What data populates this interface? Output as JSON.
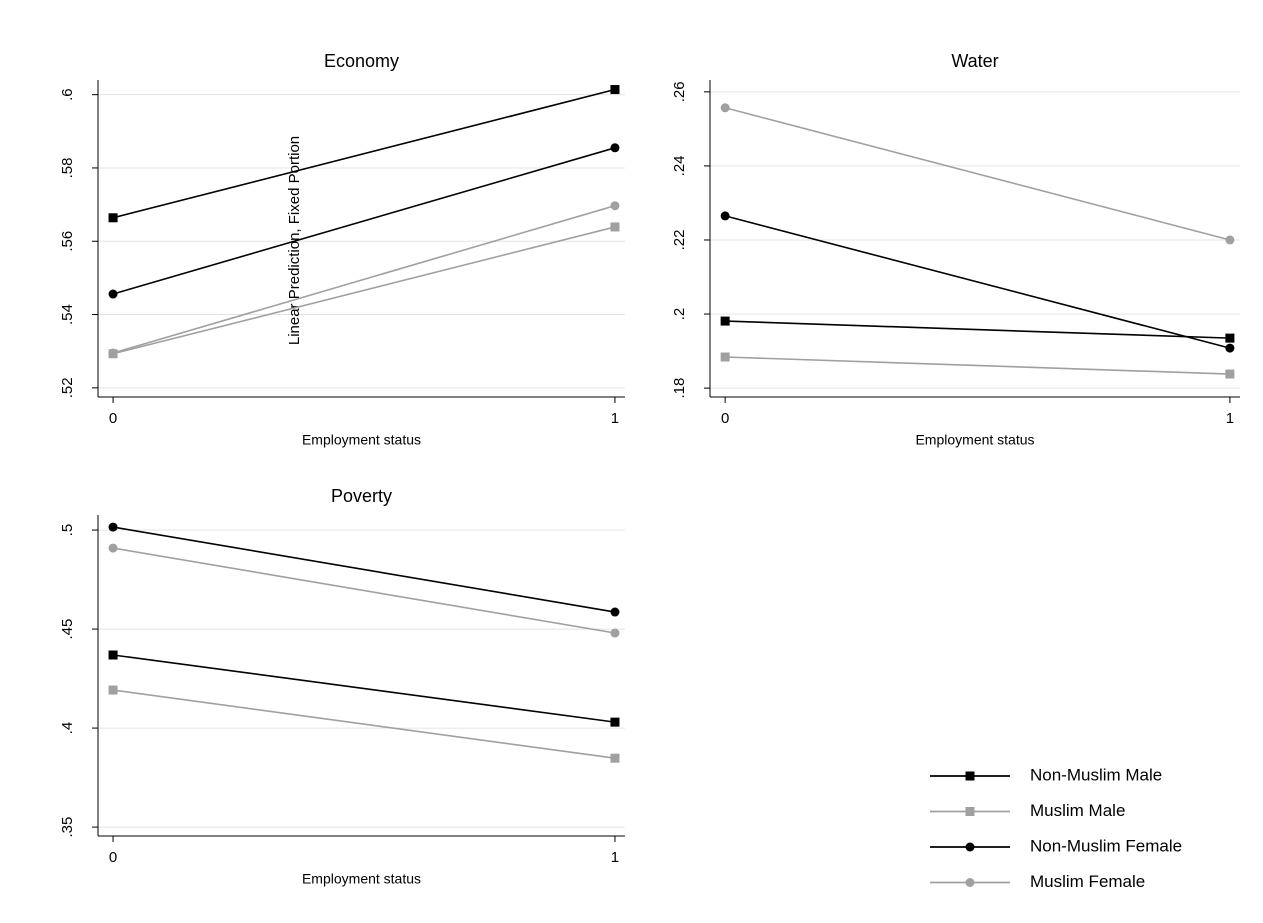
{
  "chart_data": [
    {
      "type": "line",
      "title": "Economy",
      "xlabel": "Employment status",
      "ylabel": "Linear Prediction, Fixed Portion",
      "x": [
        0,
        1
      ],
      "xlim": [
        -0.03,
        1.02
      ],
      "xticks": [
        0,
        1
      ],
      "ylim": [
        0.5175,
        0.604
      ],
      "yticks": [
        {
          "value": 0.52,
          "label": ".52"
        },
        {
          "value": 0.54,
          "label": ".54"
        },
        {
          "value": 0.56,
          "label": ".56"
        },
        {
          "value": 0.58,
          "label": ".58"
        },
        {
          "value": 0.6,
          "label": ".6"
        }
      ],
      "grid": true,
      "series": [
        {
          "name": "Non-Muslim Male",
          "color": "#000000",
          "marker": "square",
          "values": [
            0.5664,
            0.6014
          ]
        },
        {
          "name": "Muslim Male",
          "color": "#a0a0a0",
          "marker": "square",
          "values": [
            0.5293,
            0.5639
          ]
        },
        {
          "name": "Non-Muslim Female",
          "color": "#000000",
          "marker": "circle",
          "values": [
            0.5456,
            0.5855
          ]
        },
        {
          "name": "Muslim Female",
          "color": "#a0a0a0",
          "marker": "circle",
          "values": [
            0.5295,
            0.5697
          ]
        }
      ]
    },
    {
      "type": "line",
      "title": "Water",
      "xlabel": "Employment status",
      "x": [
        0,
        1
      ],
      "xlim": [
        -0.03,
        1.02
      ],
      "xticks": [
        0,
        1
      ],
      "ylim": [
        0.1776,
        0.2632
      ],
      "yticks": [
        {
          "value": 0.18,
          "label": ".18"
        },
        {
          "value": 0.2,
          "label": ".2"
        },
        {
          "value": 0.22,
          "label": ".22"
        },
        {
          "value": 0.24,
          "label": ".24"
        },
        {
          "value": 0.26,
          "label": ".26"
        }
      ],
      "grid": true,
      "series": [
        {
          "name": "Non-Muslim Male",
          "color": "#000000",
          "marker": "square",
          "values": [
            0.1981,
            0.1935
          ]
        },
        {
          "name": "Muslim Male",
          "color": "#a0a0a0",
          "marker": "square",
          "values": [
            0.1884,
            0.1838
          ]
        },
        {
          "name": "Non-Muslim Female",
          "color": "#000000",
          "marker": "circle",
          "values": [
            0.2265,
            0.1908
          ]
        },
        {
          "name": "Muslim Female",
          "color": "#a0a0a0",
          "marker": "circle",
          "values": [
            0.2557,
            0.22
          ]
        }
      ]
    },
    {
      "type": "line",
      "title": "Poverty",
      "xlabel": "Employment status",
      "x": [
        0,
        1
      ],
      "xlim": [
        -0.03,
        1.02
      ],
      "xticks": [
        0,
        1
      ],
      "ylim": [
        0.3455,
        0.5076
      ],
      "yticks": [
        {
          "value": 0.35,
          "label": ".35"
        },
        {
          "value": 0.4,
          "label": ".4"
        },
        {
          "value": 0.45,
          "label": ".45"
        },
        {
          "value": 0.5,
          "label": ".5"
        }
      ],
      "grid": true,
      "series": [
        {
          "name": "Non-Muslim Male",
          "color": "#000000",
          "marker": "square",
          "values": [
            0.4369,
            0.403
          ]
        },
        {
          "name": "Muslim Male",
          "color": "#a0a0a0",
          "marker": "square",
          "values": [
            0.4192,
            0.3848
          ]
        },
        {
          "name": "Non-Muslim Female",
          "color": "#000000",
          "marker": "circle",
          "values": [
            0.5015,
            0.4586
          ]
        },
        {
          "name": "Muslim Female",
          "color": "#a0a0a0",
          "marker": "circle",
          "values": [
            0.4909,
            0.448
          ]
        }
      ]
    }
  ]
}
